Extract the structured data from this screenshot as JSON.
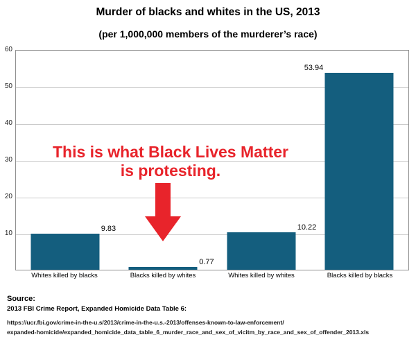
{
  "title": "Murder of blacks and whites in the US, 2013",
  "subtitle": "(per 1,000,000 members of the murderer’s race)",
  "chart_data": {
    "type": "bar",
    "title": "Murder of blacks and whites in the US, 2013",
    "subtitle": "(per 1,000,000 members of the murderer’s race)",
    "categories": [
      "Whites killed by blacks",
      "Blacks killed by whites",
      "Whites killed by whites",
      "Blacks killed by blacks"
    ],
    "values": [
      9.83,
      0.77,
      10.22,
      53.94
    ],
    "value_labels": [
      "9.83",
      "0.77",
      "10.22",
      "53.94"
    ],
    "xlabel": "",
    "ylabel": "",
    "ylim": [
      0,
      60
    ],
    "yticks": [
      10,
      20,
      30,
      40,
      50,
      60
    ],
    "grid": true,
    "legend": "none",
    "bar_color": "#145e7e"
  },
  "annotation": {
    "line1": "This is what Black Lives Matter",
    "line2": "is protesting.",
    "color": "#e8242b",
    "arrow_icon": "down-arrow"
  },
  "source": {
    "label": "Source:",
    "line1": "2013 FBI Crime Report, Expanded Homicide Data Table 6:",
    "url_line1": "https://ucr.fbi.gov/crime-in-the-u.s/2013/crime-in-the-u.s.-2013/offenses-known-to-law-enforcement/",
    "url_line2": "expanded-homicide/expanded_homicide_data_table_6_murder_race_and_sex_of_vicitm_by_race_and_sex_of_offender_2013.xls"
  }
}
